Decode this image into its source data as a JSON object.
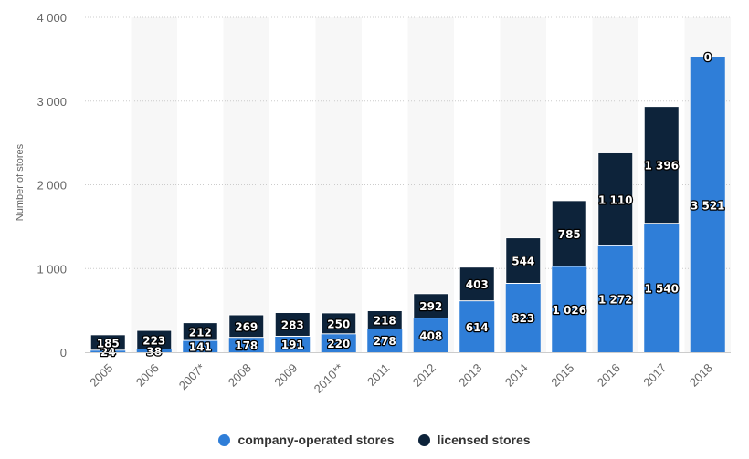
{
  "chart_data": {
    "type": "bar",
    "stacked": true,
    "categories": [
      "2005",
      "2006",
      "2007*",
      "2008",
      "2009",
      "2010**",
      "2011",
      "2012",
      "2013",
      "2014",
      "2015",
      "2016",
      "2017",
      "2018"
    ],
    "series": [
      {
        "name": "company-operated stores",
        "color": "#2f7ed8",
        "values": [
          24,
          38,
          141,
          178,
          191,
          220,
          278,
          408,
          614,
          823,
          1026,
          1272,
          1540,
          3521
        ],
        "labels": [
          "24",
          "38",
          "141",
          "178",
          "191",
          "220",
          "278",
          "408",
          "614",
          "823",
          "1 026",
          "1 272",
          "1 540",
          "3 521"
        ]
      },
      {
        "name": "licensed stores",
        "color": "#0d233a",
        "values": [
          185,
          223,
          212,
          269,
          283,
          250,
          218,
          292,
          403,
          544,
          785,
          1110,
          1396,
          0
        ],
        "labels": [
          "185",
          "223",
          "212",
          "269",
          "283",
          "250",
          "218",
          "292",
          "403",
          "544",
          "785",
          "1 110",
          "1 396",
          "0"
        ]
      }
    ],
    "ylabel": "Number of stores",
    "ylim": [
      0,
      4000
    ],
    "yticks": [
      0,
      1000,
      2000,
      3000,
      4000
    ],
    "ytick_labels": [
      "0",
      "1 000",
      "2 000",
      "3 000",
      "4 000"
    ],
    "grid": true,
    "legend_position": "bottom-center"
  }
}
